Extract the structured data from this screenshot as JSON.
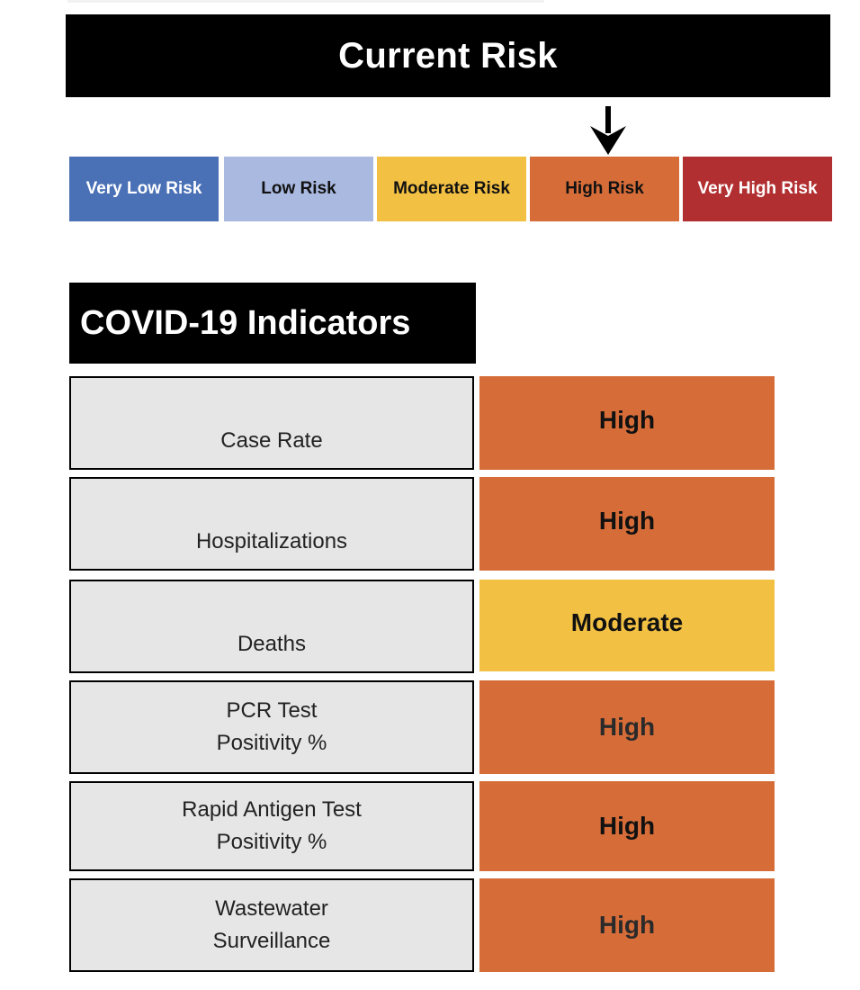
{
  "header": {
    "title": "Current Risk"
  },
  "risk_scale": {
    "current_level": "High Risk",
    "levels": [
      {
        "label": "Very Low Risk",
        "color": "#4a70b6",
        "text_color": "#ffffff"
      },
      {
        "label": "Low Risk",
        "color": "#a9b9e0",
        "text_color": "#111111"
      },
      {
        "label": "Moderate Risk",
        "color": "#f2c043",
        "text_color": "#111111"
      },
      {
        "label": "High Risk",
        "color": "#d66d39",
        "text_color": "#111111"
      },
      {
        "label": "Very High Risk",
        "color": "#b22f31",
        "text_color": "#ffffff"
      }
    ]
  },
  "indicators": {
    "title": "COVID-19 Indicators",
    "rows": [
      {
        "lines": [
          "Case Rate"
        ],
        "status": "High"
      },
      {
        "lines": [
          "Hospitalizations"
        ],
        "status": "High"
      },
      {
        "lines": [
          "Deaths"
        ],
        "status": "Moderate"
      },
      {
        "lines": [
          "PCR Test",
          "Positivity %"
        ],
        "status": "High"
      },
      {
        "lines": [
          "Rapid Antigen Test",
          "Positivity %"
        ],
        "status": "High"
      },
      {
        "lines": [
          "Wastewater",
          "Surveillance"
        ],
        "status": "High"
      }
    ]
  }
}
